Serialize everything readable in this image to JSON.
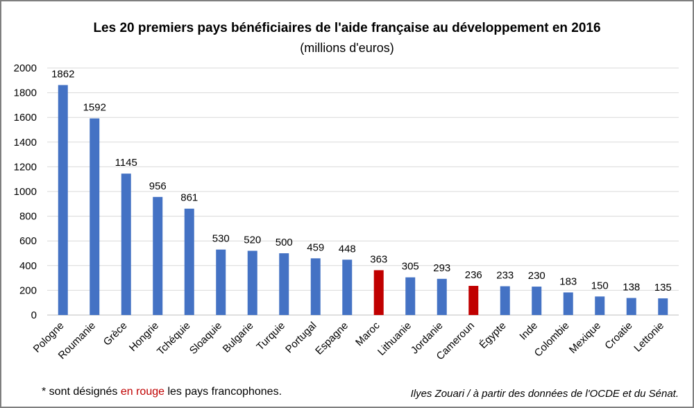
{
  "chart_data": {
    "type": "bar",
    "title": "Les 20 premiers pays bénéficiaires de l'aide française au développement en 2016",
    "subtitle": "(millions d'euros)",
    "categories": [
      "Pologne",
      "Roumanie",
      "Grèce",
      "Hongrie",
      "Tchéquie",
      "Sloaquie",
      "Bulgarie",
      "Turquie",
      "Portugal",
      "Espagne",
      "Maroc",
      "Lithuanie",
      "Jordanie",
      "Cameroun",
      "Égypte",
      "Inde",
      "Colombie",
      "Mexique",
      "Croatie",
      "Lettonie"
    ],
    "values": [
      1862,
      1592,
      1145,
      956,
      861,
      530,
      520,
      500,
      459,
      448,
      363,
      305,
      293,
      236,
      233,
      230,
      183,
      150,
      138,
      135
    ],
    "francophone": [
      false,
      false,
      false,
      false,
      false,
      false,
      false,
      false,
      false,
      false,
      true,
      false,
      false,
      true,
      false,
      false,
      false,
      false,
      false,
      false
    ],
    "ylim": [
      0,
      2000
    ],
    "yticks": [
      0,
      200,
      400,
      600,
      800,
      1000,
      1200,
      1400,
      1600,
      1800,
      2000
    ],
    "grid": true,
    "legend": "none",
    "colors": {
      "default": "#4472c4",
      "francophone": "#c00000"
    }
  },
  "footnote": {
    "prefix": "* sont désignés ",
    "highlight": "en rouge",
    "suffix": " les pays francophones."
  },
  "credit": "Ilyes Zouari / à partir des données de l'OCDE et du Sénat."
}
